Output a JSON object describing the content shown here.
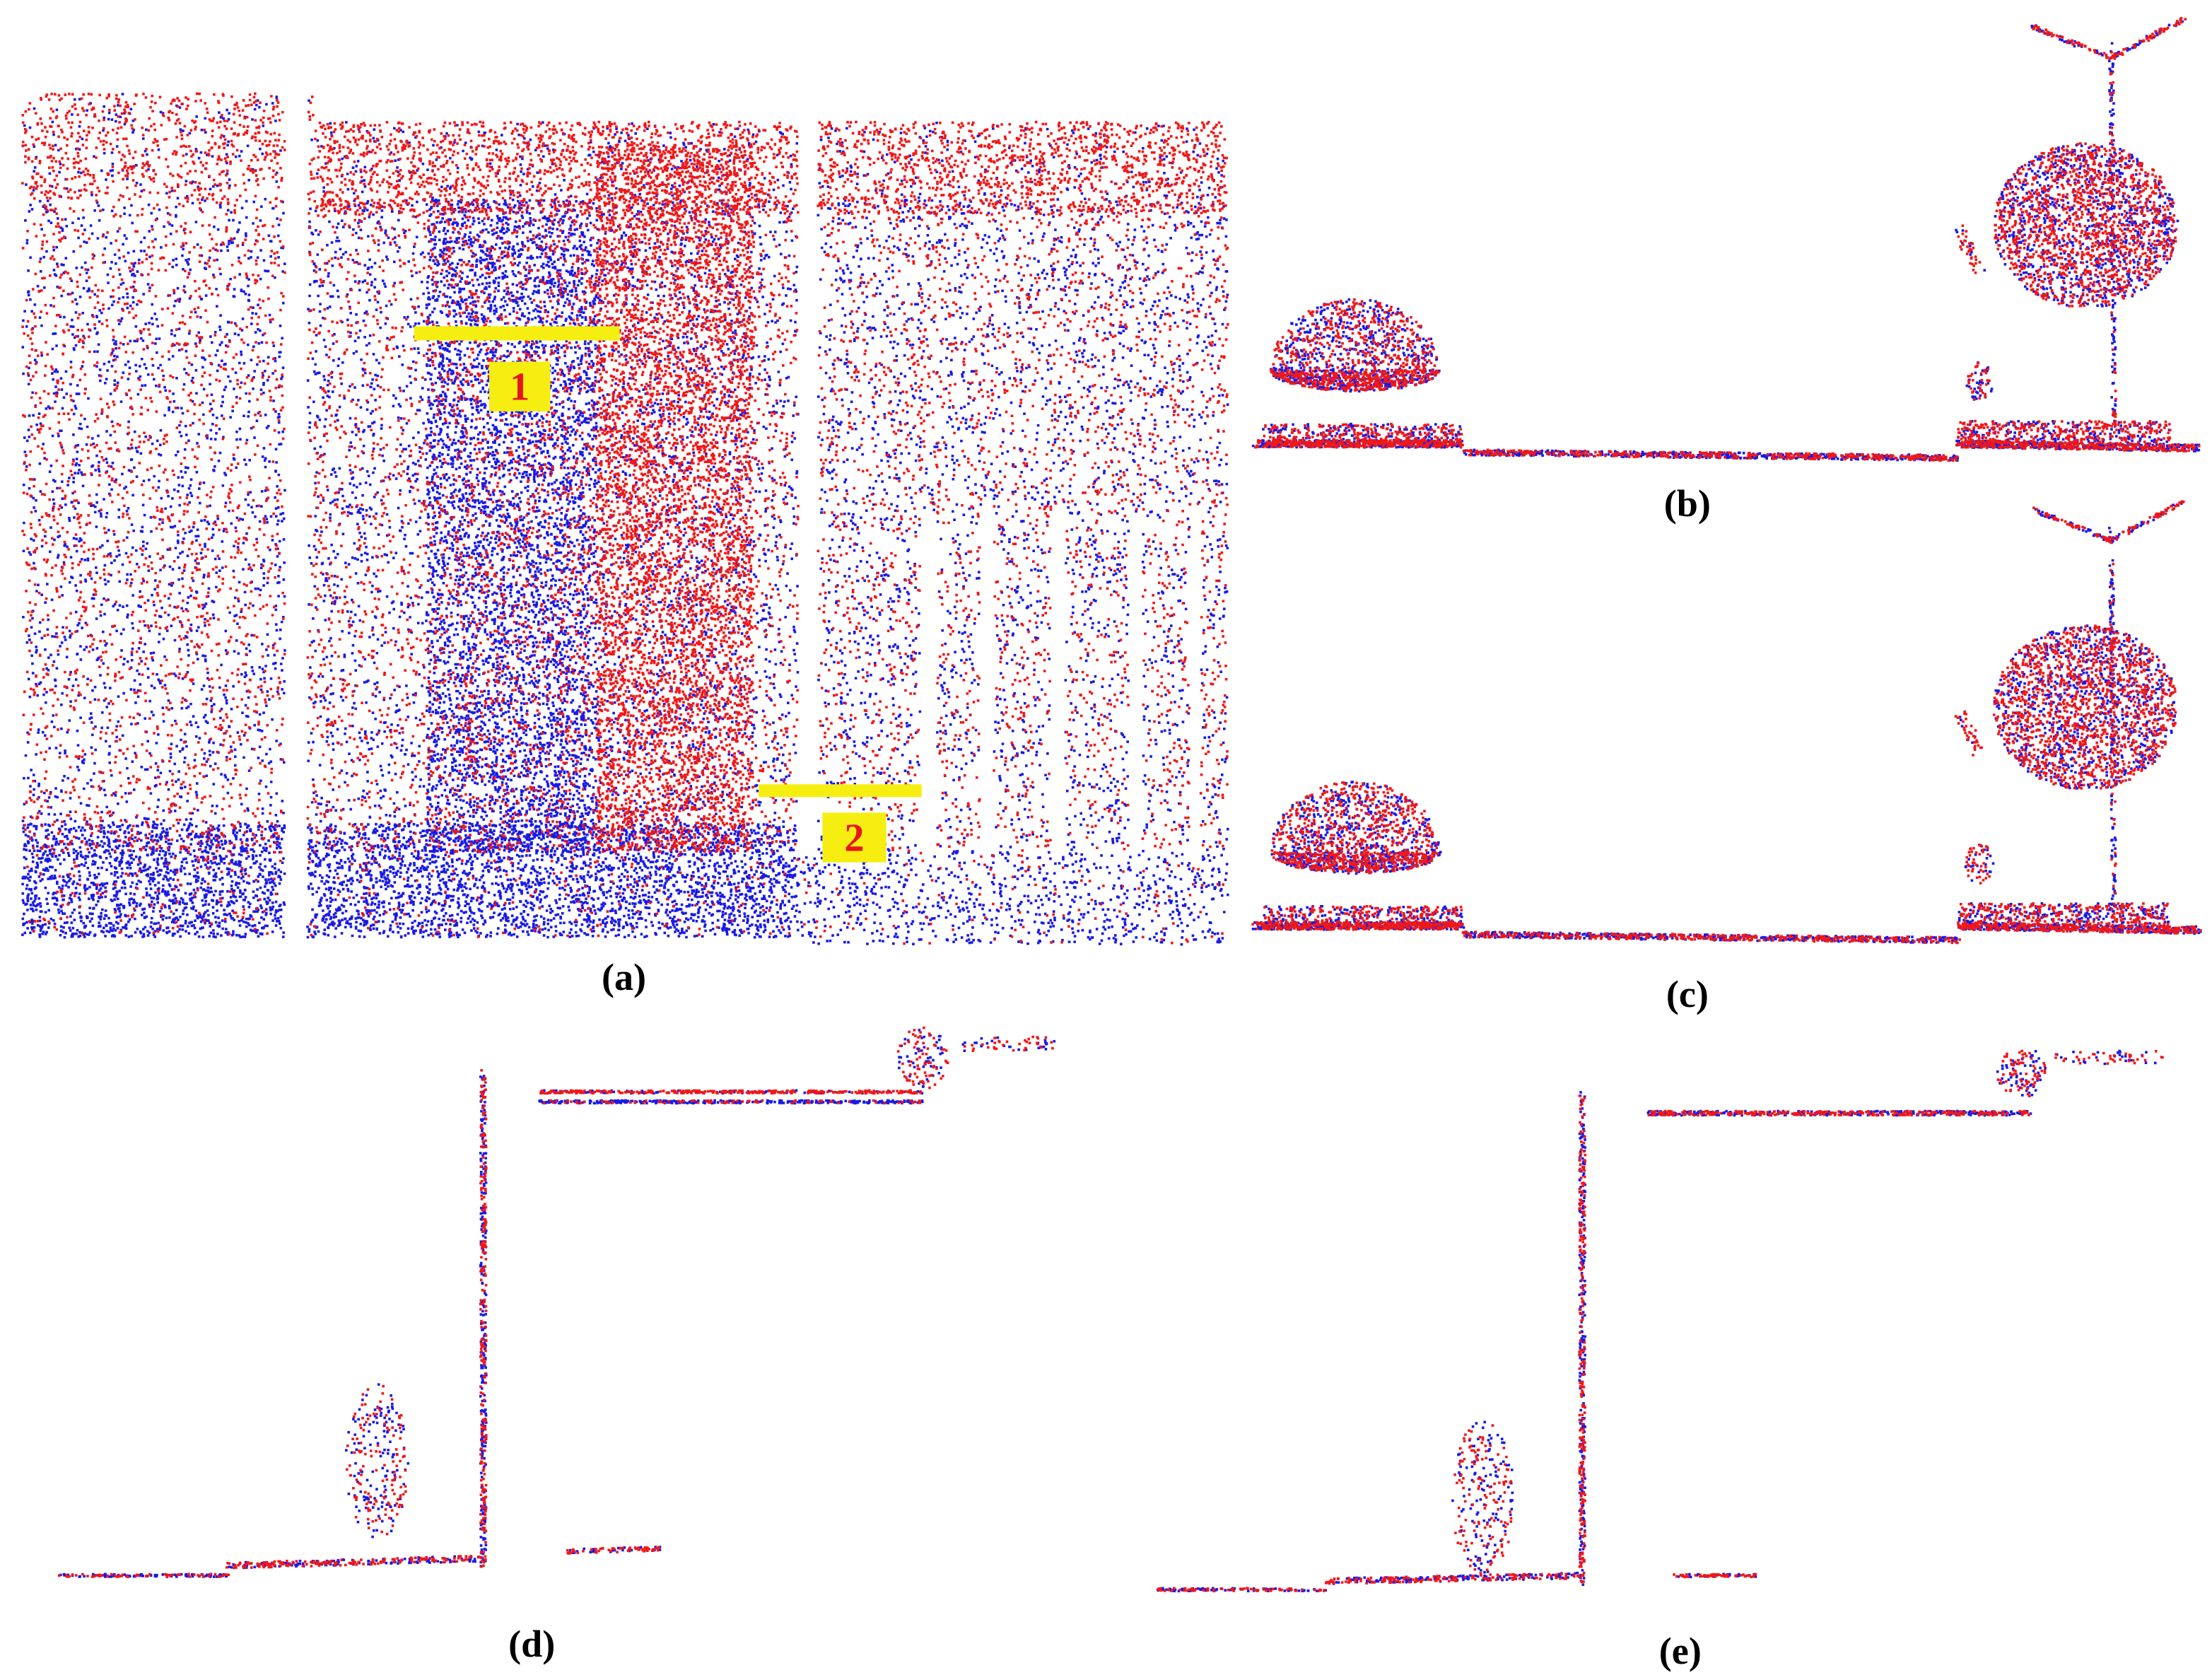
{
  "panels": [
    {
      "label": "(a)"
    },
    {
      "label": "(b)"
    },
    {
      "label": "(c)"
    },
    {
      "label": "(d)"
    },
    {
      "label": "(e)"
    }
  ],
  "markers": [
    {
      "label": "1"
    },
    {
      "label": "2"
    }
  ]
}
